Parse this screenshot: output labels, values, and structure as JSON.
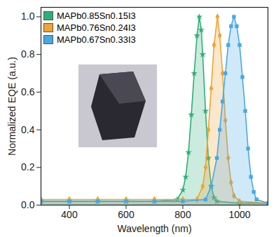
{
  "chart_data": {
    "type": "line",
    "x_label": "Wavelength (nm)",
    "y_label": "Normalized EQE (a.u.)",
    "xlim": [
      300,
      1100
    ],
    "xticks": [
      400,
      600,
      800,
      1000
    ],
    "ylim": [
      0,
      1.05
    ],
    "yticks": [
      {
        "value": 0,
        "label": "0.0"
      },
      0.2,
      0.4,
      0.6,
      0.8,
      {
        "value": 1,
        "label": "1.0"
      }
    ],
    "grid": false,
    "legend": "top-left",
    "series": [
      {
        "name": "MAPb0.85Sn0.15I3",
        "color": "#2fae7a",
        "marker": "star",
        "x": [
          300,
          400,
          500,
          600,
          700,
          780,
          800,
          810,
          820,
          830,
          840,
          850,
          858,
          865,
          870,
          880,
          890,
          900,
          910,
          920,
          1000,
          1100
        ],
        "values": [
          0.02,
          0.02,
          0.02,
          0.02,
          0.02,
          0.03,
          0.08,
          0.15,
          0.28,
          0.48,
          0.7,
          0.9,
          1.0,
          0.93,
          0.8,
          0.5,
          0.25,
          0.1,
          0.04,
          0.02,
          0.01,
          0.01
        ]
      },
      {
        "name": "MAPb0.76Sn0.24I3",
        "color": "#f0a431",
        "marker": "diamond",
        "x": [
          300,
          400,
          500,
          600,
          700,
          800,
          850,
          870,
          880,
          890,
          900,
          910,
          922,
          930,
          940,
          950,
          960,
          970,
          980,
          1000,
          1100
        ],
        "values": [
          0.03,
          0.03,
          0.03,
          0.03,
          0.03,
          0.03,
          0.03,
          0.1,
          0.2,
          0.4,
          0.62,
          0.85,
          1.0,
          0.9,
          0.7,
          0.45,
          0.25,
          0.12,
          0.05,
          0.02,
          0.01
        ]
      },
      {
        "name": "MAPb0.67Sn0.33I3",
        "color": "#45a9e6",
        "marker": "square",
        "x": [
          300,
          400,
          500,
          600,
          700,
          800,
          880,
          900,
          920,
          930,
          940,
          950,
          960,
          970,
          980,
          990,
          1000,
          1010,
          1020,
          1030,
          1040,
          1050,
          1060,
          1100
        ],
        "values": [
          0.02,
          0.02,
          0.02,
          0.02,
          0.02,
          0.02,
          0.03,
          0.1,
          0.25,
          0.4,
          0.55,
          0.7,
          0.85,
          0.95,
          1.0,
          0.95,
          0.85,
          0.68,
          0.5,
          0.3,
          0.15,
          0.07,
          0.03,
          0.01
        ]
      }
    ]
  }
}
